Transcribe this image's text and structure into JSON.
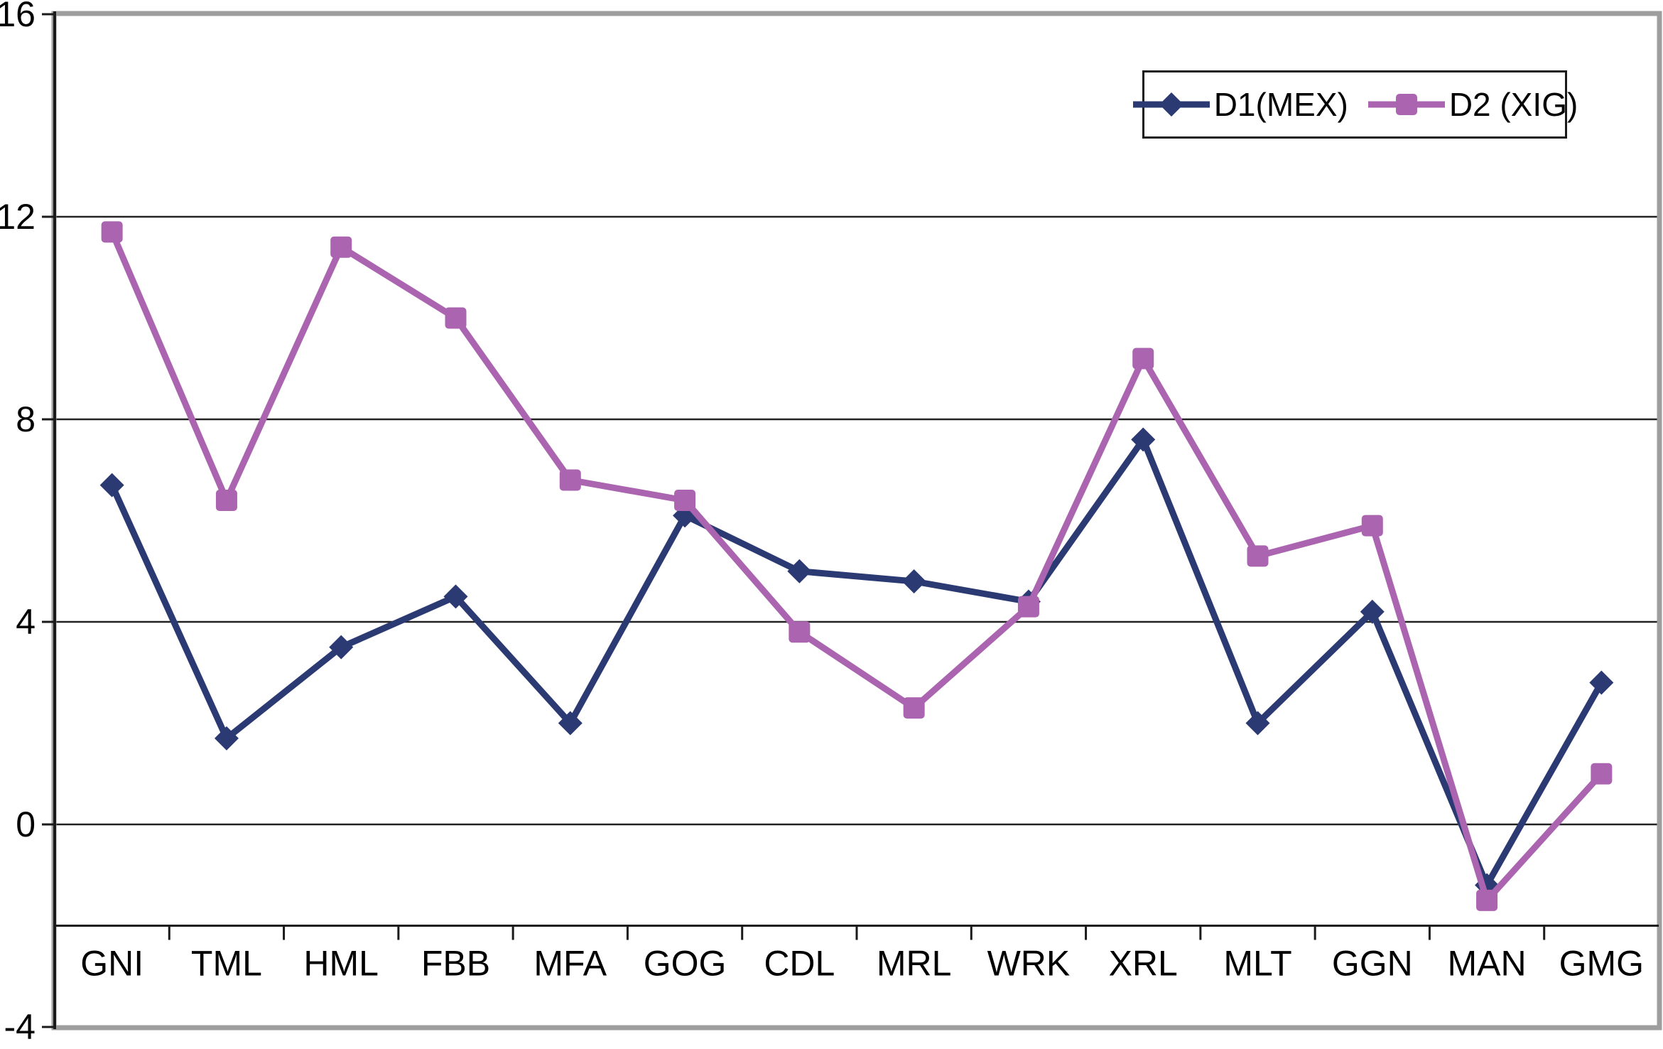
{
  "chart_data": {
    "type": "line",
    "title": "",
    "xlabel": "",
    "ylabel": "",
    "categories": [
      "GNI",
      "TML",
      "HML",
      "FBB",
      "MFA",
      "GOG",
      "CDL",
      "MRL",
      "WRK",
      "XRL",
      "MLT",
      "GGN",
      "MAN",
      "GMG"
    ],
    "series": [
      {
        "name": "D1(MEX)",
        "marker": "diamond",
        "color": "#2B3A72",
        "values": [
          6.7,
          1.7,
          3.5,
          4.5,
          2.0,
          6.1,
          5.0,
          4.8,
          4.4,
          7.6,
          2.0,
          4.2,
          -1.2,
          2.8
        ]
      },
      {
        "name": "D2 (XIG)",
        "marker": "square",
        "color": "#AB64AF",
        "values": [
          11.7,
          6.4,
          11.4,
          10.0,
          6.8,
          6.4,
          3.8,
          2.3,
          4.3,
          9.2,
          5.3,
          5.9,
          -1.5,
          1.0
        ]
      }
    ],
    "ylim": [
      -4,
      16
    ],
    "yticks": [
      16,
      12,
      8,
      4,
      0,
      -4
    ],
    "gridlines": [
      12,
      8,
      4,
      0
    ],
    "category_axis_value": -2,
    "grid": "horizontal",
    "legend_position": "top-right",
    "colors": {
      "frame": "#9E9E9E",
      "axis": "#1a1a1a",
      "gridline": "#222222",
      "background": "#ffffff",
      "text": "#000000"
    }
  }
}
